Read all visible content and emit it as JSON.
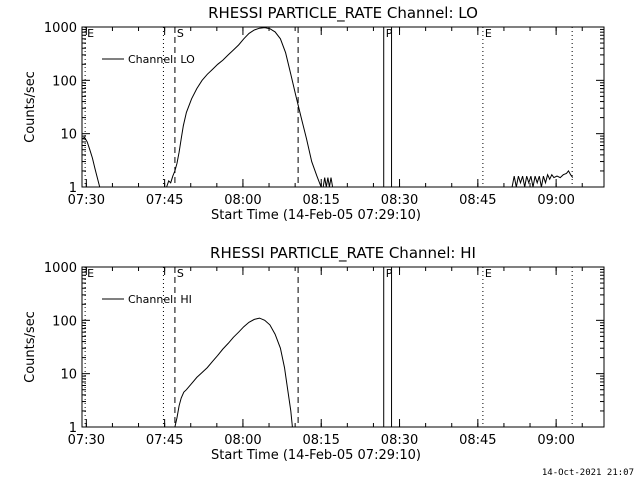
{
  "footer": {
    "timestamp": "14-Oct-2021 21:07"
  },
  "chart_data": [
    {
      "type": "line",
      "title": "RHESSI PARTICLE_RATE Channel: LO",
      "xlabel": "Start Time (14-Feb-05 07:29:10)",
      "ylabel": "Counts/sec",
      "legend": {
        "label": "Channel: LO",
        "placement": "top-left"
      },
      "x_unit": "minutes since 07:29:10",
      "xlim": [
        0,
        100
      ],
      "ylim": [
        1,
        1000
      ],
      "y_scale": "log",
      "xticks": [
        {
          "value": 0.83,
          "label": "07:30"
        },
        {
          "value": 15.83,
          "label": "07:45"
        },
        {
          "value": 30.83,
          "label": "08:00"
        },
        {
          "value": 45.83,
          "label": "08:15"
        },
        {
          "value": 60.83,
          "label": "08:30"
        },
        {
          "value": 75.83,
          "label": "08:45"
        },
        {
          "value": 90.83,
          "label": "09:00"
        }
      ],
      "yticks": [
        {
          "value": 1,
          "label": "1"
        },
        {
          "value": 10,
          "label": "10"
        },
        {
          "value": 100,
          "label": "100"
        },
        {
          "value": 1000,
          "label": "1000"
        }
      ],
      "markers": [
        {
          "x": 0.6,
          "label": "E",
          "style": "dotted"
        },
        {
          "x": 15.6,
          "label": "",
          "style": "dotted"
        },
        {
          "x": 17.8,
          "label": "S",
          "style": "dashed"
        },
        {
          "x": 41.4,
          "label": "",
          "style": "dashed"
        },
        {
          "x": 57.8,
          "label": "P",
          "style": "solid"
        },
        {
          "x": 59.3,
          "label": "",
          "style": "solid"
        },
        {
          "x": 76.8,
          "label": "E",
          "style": "dotted"
        },
        {
          "x": 93.9,
          "label": "",
          "style": "dotted"
        }
      ],
      "series": [
        {
          "name": "Channel: LO",
          "segments": [
            [
              [
                0,
                8
              ],
              [
                0.5,
                8.5
              ],
              [
                1,
                7
              ],
              [
                1.5,
                5
              ],
              [
                2,
                3.5
              ],
              [
                2.5,
                2.2
              ],
              [
                3,
                1.4
              ],
              [
                3.4,
                1
              ]
            ],
            [
              [
                16.2,
                1
              ],
              [
                16.6,
                1.3
              ],
              [
                17,
                1.2
              ],
              [
                17.4,
                1.6
              ],
              [
                17.8,
                2
              ],
              [
                18.2,
                2.8
              ],
              [
                18.6,
                4.5
              ],
              [
                19,
                8
              ],
              [
                19.4,
                14
              ],
              [
                20,
                25
              ],
              [
                21,
                45
              ],
              [
                22,
                70
              ],
              [
                23,
                100
              ],
              [
                24,
                130
              ],
              [
                25,
                160
              ],
              [
                26,
                200
              ],
              [
                27,
                240
              ],
              [
                28,
                300
              ],
              [
                29,
                370
              ],
              [
                30,
                460
              ],
              [
                31,
                600
              ],
              [
                32,
                760
              ],
              [
                33,
                880
              ],
              [
                34,
                950
              ],
              [
                35,
                975
              ],
              [
                36,
                930
              ],
              [
                37,
                810
              ],
              [
                38,
                600
              ],
              [
                39,
                330
              ],
              [
                40,
                130
              ],
              [
                41,
                50
              ],
              [
                42,
                20
              ],
              [
                43,
                8
              ],
              [
                44,
                3
              ],
              [
                45,
                1.6
              ],
              [
                45.8,
                1
              ]
            ],
            [
              [
                46.2,
                1
              ],
              [
                46.5,
                1.5
              ],
              [
                46.8,
                1
              ],
              [
                47.1,
                1.5
              ],
              [
                47.4,
                1
              ],
              [
                47.7,
                1.5
              ],
              [
                48,
                1
              ]
            ],
            [
              [
                82.4,
                1
              ],
              [
                82.8,
                1.6
              ],
              [
                83.2,
                1
              ],
              [
                83.6,
                1.6
              ],
              [
                84,
                1.2
              ],
              [
                84.4,
                1.6
              ],
              [
                84.8,
                1
              ],
              [
                85.2,
                1.6
              ],
              [
                85.6,
                1.2
              ],
              [
                86,
                1.6
              ],
              [
                86.4,
                1
              ],
              [
                86.8,
                1.6
              ],
              [
                87.2,
                1.2
              ],
              [
                87.6,
                1.6
              ],
              [
                88,
                1
              ],
              [
                88.4,
                1.6
              ],
              [
                88.8,
                1.2
              ],
              [
                89.2,
                1.7
              ],
              [
                89.6,
                1.4
              ],
              [
                90,
                1.7
              ],
              [
                90.4,
                1.5
              ],
              [
                91,
                1.6
              ],
              [
                91.6,
                1.5
              ],
              [
                92.2,
                1.7
              ],
              [
                92.8,
                1.8
              ],
              [
                93.2,
                2
              ],
              [
                93.6,
                1.7
              ],
              [
                94,
                1.5
              ]
            ]
          ]
        }
      ]
    },
    {
      "type": "line",
      "title": "RHESSI PARTICLE_RATE Channel: HI",
      "xlabel": "Start Time (14-Feb-05 07:29:10)",
      "ylabel": "Counts/sec",
      "legend": {
        "label": "Channel: HI",
        "placement": "top-left"
      },
      "x_unit": "minutes since 07:29:10",
      "xlim": [
        0,
        100
      ],
      "ylim": [
        1,
        1000
      ],
      "y_scale": "log",
      "xticks": [
        {
          "value": 0.83,
          "label": "07:30"
        },
        {
          "value": 15.83,
          "label": "07:45"
        },
        {
          "value": 30.83,
          "label": "08:00"
        },
        {
          "value": 45.83,
          "label": "08:15"
        },
        {
          "value": 60.83,
          "label": "08:30"
        },
        {
          "value": 75.83,
          "label": "08:45"
        },
        {
          "value": 90.83,
          "label": "09:00"
        }
      ],
      "yticks": [
        {
          "value": 1,
          "label": "1"
        },
        {
          "value": 10,
          "label": "10"
        },
        {
          "value": 100,
          "label": "100"
        },
        {
          "value": 1000,
          "label": "1000"
        }
      ],
      "markers": [
        {
          "x": 0.6,
          "label": "E",
          "style": "dotted"
        },
        {
          "x": 15.6,
          "label": "",
          "style": "dotted"
        },
        {
          "x": 17.8,
          "label": "S",
          "style": "dashed"
        },
        {
          "x": 41.4,
          "label": "",
          "style": "dashed"
        },
        {
          "x": 57.8,
          "label": "P",
          "style": "solid"
        },
        {
          "x": 59.3,
          "label": "",
          "style": "solid"
        },
        {
          "x": 76.8,
          "label": "E",
          "style": "dotted"
        },
        {
          "x": 93.9,
          "label": "",
          "style": "dotted"
        }
      ],
      "series": [
        {
          "name": "Channel: HI",
          "segments": [
            [
              [
                17.8,
                1
              ],
              [
                18.2,
                1.5
              ],
              [
                18.6,
                2.5
              ],
              [
                19,
                3.5
              ],
              [
                19.5,
                4.5
              ],
              [
                20,
                5
              ],
              [
                21,
                6.5
              ],
              [
                22,
                8.5
              ],
              [
                23,
                10.5
              ],
              [
                24,
                13
              ],
              [
                25,
                17
              ],
              [
                26,
                22
              ],
              [
                27,
                29
              ],
              [
                28,
                37
              ],
              [
                29,
                48
              ],
              [
                30,
                60
              ],
              [
                31,
                76
              ],
              [
                32,
                92
              ],
              [
                33,
                104
              ],
              [
                34,
                110
              ],
              [
                35,
                100
              ],
              [
                36,
                82
              ],
              [
                37,
                55
              ],
              [
                38,
                30
              ],
              [
                38.8,
                13
              ],
              [
                39.4,
                5
              ],
              [
                40,
                2
              ],
              [
                40.3,
                1
              ]
            ]
          ]
        }
      ]
    }
  ]
}
